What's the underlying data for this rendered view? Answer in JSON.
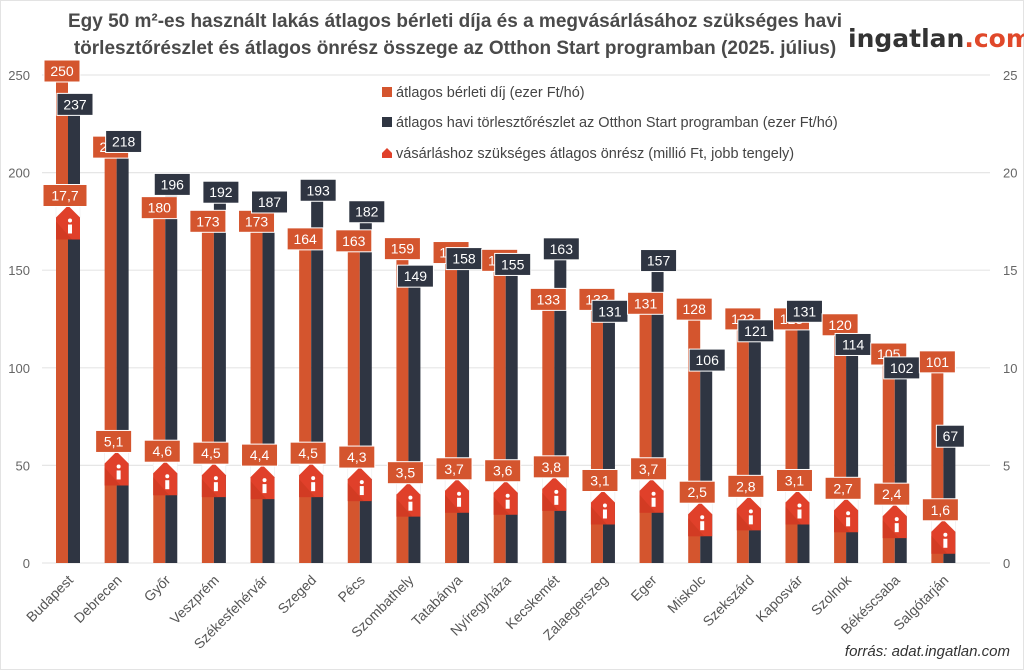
{
  "header": {
    "title_line1": "Egy 50 m²-es használt lakás átlagos bérleti díja és a megvásárlásához szükséges havi",
    "title_line2": "törlesztőrészlet és átlagos önrész összege az Otthon Start programban (2025. július)",
    "logo_main": "ingatlan",
    "logo_suffix": ".com"
  },
  "footer": {
    "source": "forrás: adat.ingatlan.com"
  },
  "colors": {
    "rent": "#d4552e",
    "installment": "#2f3542",
    "downpayment": "#e0402a",
    "grid": "#e6e6e6"
  },
  "chart_data": {
    "type": "bar",
    "title": "Egy 50 m²-es használt lakás átlagos bérleti díja és a megvásárlásához szükséges havi törlesztőrészlet és átlagos önrész összege az Otthon Start programban (2025. július)",
    "categories": [
      "Budapest",
      "Debrecen",
      "Győr",
      "Veszprém",
      "Székesfehérvár",
      "Szeged",
      "Pécs",
      "Szombathely",
      "Tatabánya",
      "Nyíregyháza",
      "Kecskemét",
      "Zalaegerszeg",
      "Eger",
      "Miskolc",
      "Szekszárd",
      "Kaposvár",
      "Szolnok",
      "Békéscsaba",
      "Salgótarján"
    ],
    "series": [
      {
        "name": "átlagos bérleti díj (ezer Ft/hó)",
        "axis": "left",
        "kind": "bar",
        "values": [
          250,
          211,
          180,
          173,
          173,
          164,
          163,
          159,
          157,
          153,
          133,
          133,
          131,
          128,
          123,
          123,
          120,
          105,
          101
        ]
      },
      {
        "name": "átlagos havi törlesztőrészlet az Otthon Start programban (ezer Ft/hó)",
        "axis": "left",
        "kind": "bar",
        "values": [
          237,
          218,
          196,
          192,
          187,
          193,
          182,
          149,
          158,
          155,
          163,
          131,
          157,
          106,
          121,
          131,
          114,
          102,
          67
        ]
      },
      {
        "name": "vásárláshoz szükséges átlagos önrész (millió Ft, jobb tengely)",
        "axis": "right",
        "kind": "marker-house",
        "values": [
          17.7,
          5.1,
          4.6,
          4.5,
          4.4,
          4.5,
          4.3,
          3.5,
          3.7,
          3.6,
          3.8,
          3.1,
          3.7,
          2.5,
          2.8,
          3.1,
          2.7,
          2.4,
          1.6
        ],
        "labels": [
          "17,7",
          "5,1",
          "4,6",
          "4,5",
          "4,4",
          "4,5",
          "4,3",
          "3,5",
          "3,7",
          "3,6",
          "3,8",
          "3,1",
          "3,7",
          "2,5",
          "2,8",
          "3,1",
          "2,7",
          "2,4",
          "1,6"
        ]
      }
    ],
    "ylim_left": [
      0,
      250
    ],
    "ylim_right": [
      0,
      25
    ],
    "yticks_left": [
      "0",
      "50",
      "100",
      "150",
      "200",
      "250"
    ],
    "yticks_right": [
      "0",
      "5",
      "10",
      "15",
      "20",
      "25"
    ],
    "xlabel": "",
    "ylabel": "",
    "grid": true,
    "legend_position": "top-center"
  }
}
